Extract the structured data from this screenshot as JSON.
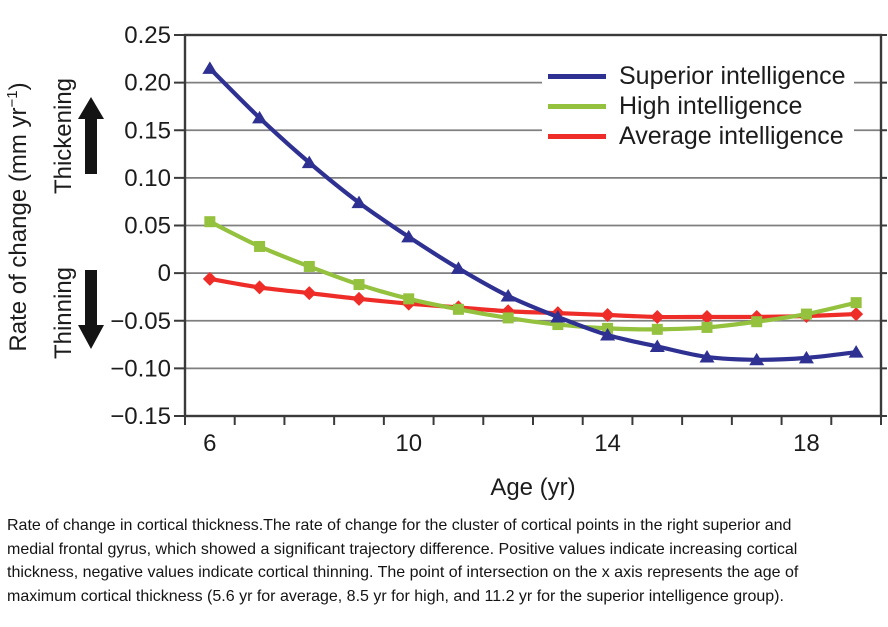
{
  "figure": {
    "y_axis_label": {
      "pre": "Rate of change (mm yr",
      "sup": "−1",
      "post": ")"
    },
    "thickening_label": "Thickening",
    "thinning_label": "Thinning"
  },
  "colors": {
    "grid": "#7f7f7f",
    "axis": "#3a3a3a",
    "text": "#1c1c1c",
    "arrow": "#141414",
    "background": "#ffffff"
  },
  "chart_data": {
    "type": "line",
    "title": "",
    "xlabel": "Age (yr)",
    "ylabel": "Rate of change (mm yr−1)",
    "x": [
      6,
      7,
      8,
      9,
      10,
      11,
      12,
      13,
      14,
      15,
      16,
      17,
      18,
      19
    ],
    "ylim": [
      -0.15,
      0.25
    ],
    "grid": true,
    "legend_position": "top-right",
    "y_ticks": [
      {
        "value": 0.25,
        "label": "0.25"
      },
      {
        "value": 0.2,
        "label": "0.20"
      },
      {
        "value": 0.15,
        "label": "0.15"
      },
      {
        "value": 0.1,
        "label": "0.10"
      },
      {
        "value": 0.05,
        "label": "0.05"
      },
      {
        "value": 0,
        "label": "0"
      },
      {
        "value": -0.05,
        "label": "−0.05"
      },
      {
        "value": -0.1,
        "label": "−0.10"
      },
      {
        "value": -0.15,
        "label": "−0.15"
      }
    ],
    "x_tick_labels": [
      {
        "value": 6,
        "label": "6"
      },
      {
        "value": 10,
        "label": "10"
      },
      {
        "value": 14,
        "label": "14"
      },
      {
        "value": 18,
        "label": "18"
      }
    ],
    "series": [
      {
        "name": "Superior intelligence",
        "color": "#2e3192",
        "marker": "triangle",
        "values": [
          0.215,
          0.163,
          0.116,
          0.074,
          0.038,
          0.005,
          -0.024,
          -0.046,
          -0.065,
          -0.077,
          -0.088,
          -0.091,
          -0.089,
          -0.083
        ]
      },
      {
        "name": "High intelligence",
        "color": "#94c13e",
        "marker": "square",
        "values": [
          0.054,
          0.028,
          0.007,
          -0.012,
          -0.027,
          -0.038,
          -0.047,
          -0.054,
          -0.058,
          -0.059,
          -0.057,
          -0.051,
          -0.043,
          -0.031
        ]
      },
      {
        "name": "Average intelligence",
        "color": "#ee2c28",
        "marker": "diamond",
        "values": [
          -0.006,
          -0.015,
          -0.021,
          -0.027,
          -0.032,
          -0.036,
          -0.04,
          -0.042,
          -0.044,
          -0.046,
          -0.046,
          -0.046,
          -0.045,
          -0.043
        ]
      }
    ]
  },
  "caption": {
    "lines": [
      "Rate of change in cortical thickness.The rate of change for the cluster of cortical points in the right superior and",
      "medial frontal gyrus, which showed a significant trajectory difference. Positive values indicate increasing cortical",
      "thickness, negative values indicate cortical thinning. The point of intersection on the x axis represents the age of",
      "maximum cortical thickness (5.6 yr for average, 8.5 yr for high, and 11.2 yr for the superior intelligence group)."
    ]
  }
}
